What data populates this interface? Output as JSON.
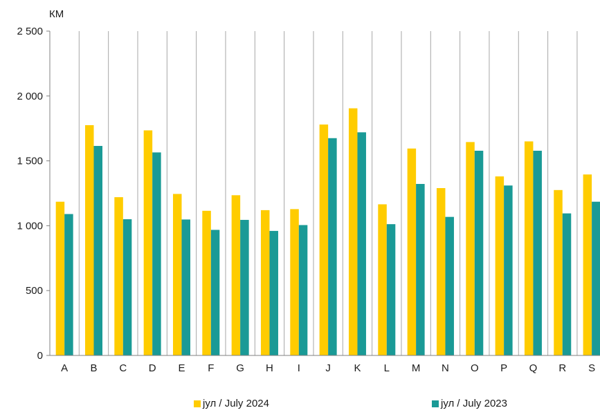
{
  "chart_data": {
    "type": "bar",
    "unit_label": "КМ",
    "categories": [
      "A",
      "B",
      "C",
      "D",
      "E",
      "F",
      "G",
      "H",
      "I",
      "J",
      "K",
      "L",
      "M",
      "N",
      "O",
      "P",
      "Q",
      "R",
      "S"
    ],
    "series": [
      {
        "name": "јул / July 2024",
        "color": "#FFCC00",
        "values": [
          1185,
          1775,
          1220,
          1735,
          1245,
          1115,
          1235,
          1120,
          1128,
          1780,
          1905,
          1165,
          1595,
          1290,
          1645,
          1380,
          1650,
          1275,
          1395
        ]
      },
      {
        "name": "јул / July 2023",
        "color": "#1A9A96",
        "values": [
          1090,
          1615,
          1050,
          1565,
          1048,
          968,
          1045,
          960,
          1005,
          1675,
          1720,
          1012,
          1322,
          1068,
          1578,
          1310,
          1578,
          1095,
          1185
        ]
      }
    ],
    "ylim": [
      0,
      2500
    ],
    "yticks": [
      0,
      500,
      1000,
      1500,
      2000,
      2500
    ],
    "ytick_labels": [
      "0",
      "500",
      "1 000",
      "1 500",
      "2 000",
      "2 500"
    ],
    "grid": "vertical",
    "legend": "bottom"
  }
}
